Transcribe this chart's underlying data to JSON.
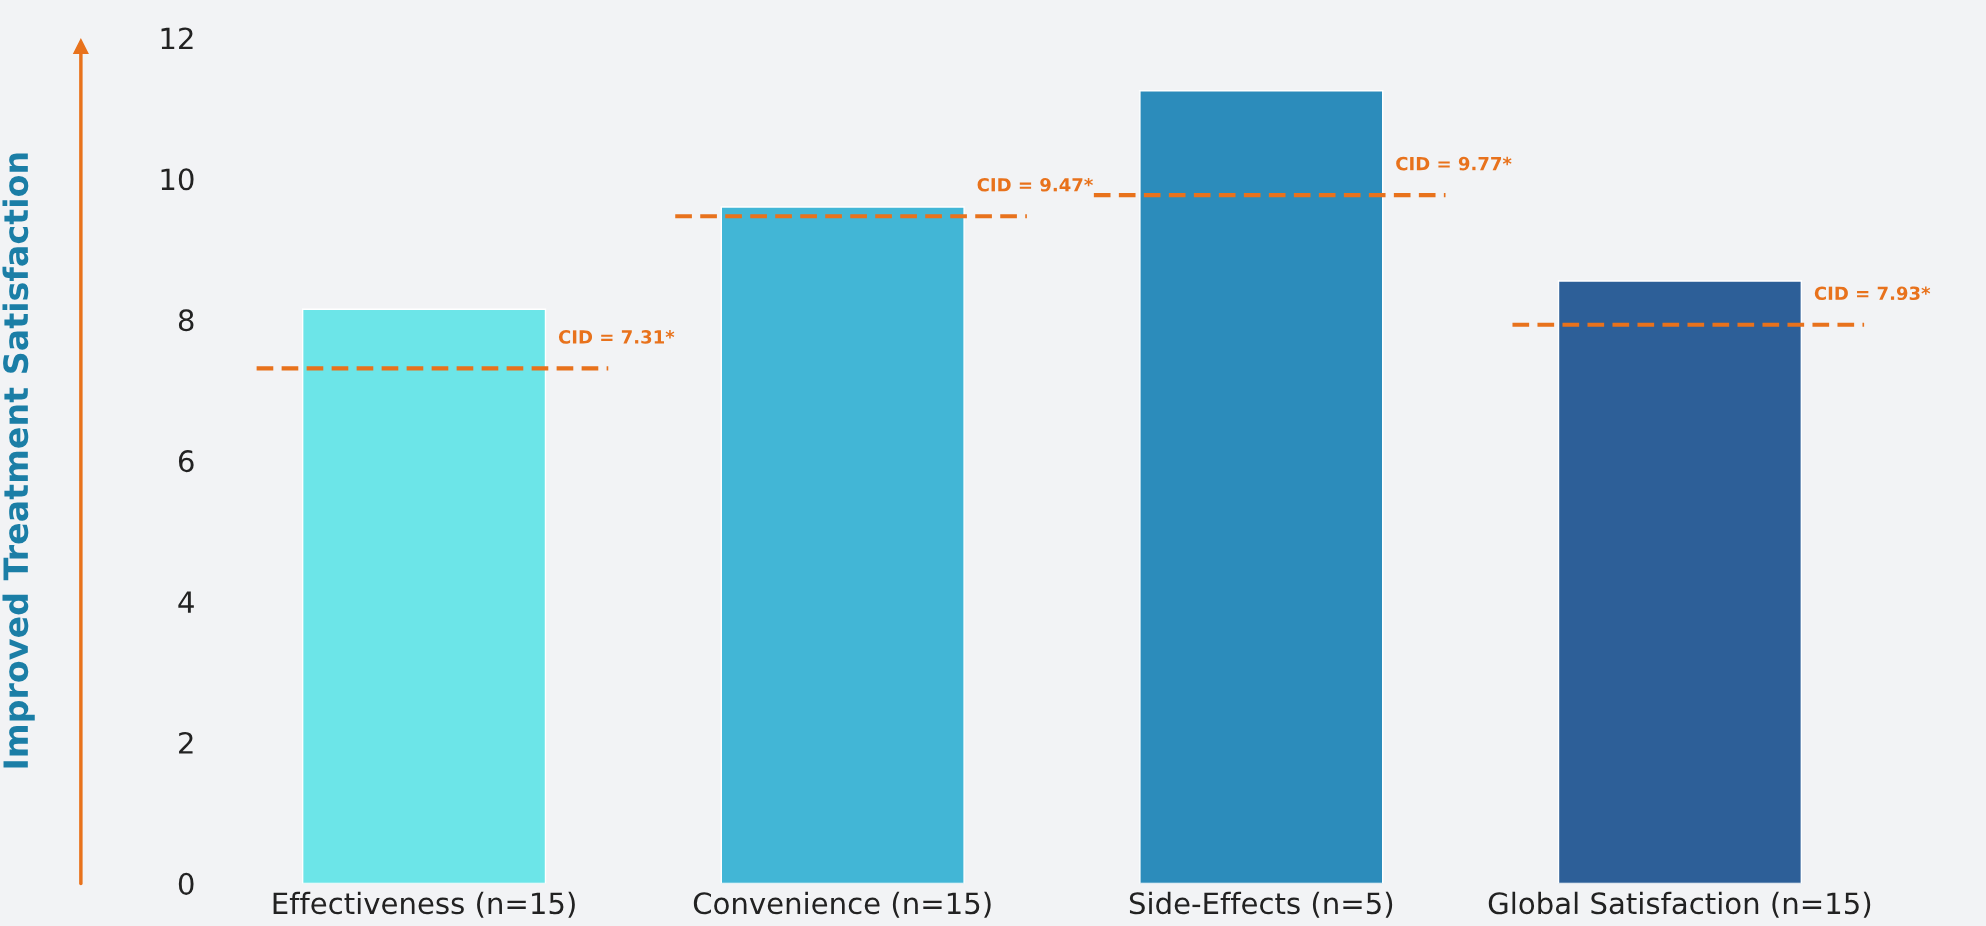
{
  "chart_data": {
    "type": "bar",
    "ylabel": "Improved Treatment Satisfaction",
    "categories": [
      "Effectiveness (n=15)",
      "Convenience (n=15)",
      "Side-Effects (n=5)",
      "Global Satisfaction (n=15)"
    ],
    "values": [
      8.15,
      9.6,
      11.25,
      8.55
    ],
    "colors": [
      "#6ce5e8",
      "#42b6d6",
      "#2c8cbb",
      "#2d5f98"
    ],
    "ylim": [
      0,
      12
    ],
    "yticks": [
      0,
      2,
      4,
      6,
      8,
      10,
      12
    ],
    "grid": false,
    "ref_lines": [
      {
        "axis": "y",
        "value": 7.31,
        "label": "CID = 7.31*",
        "color": "#e8721c",
        "line_style": "dashed"
      },
      {
        "axis": "y",
        "value": 9.47,
        "label": "CID = 9.47*",
        "color": "#e8721c",
        "line_style": "dashed"
      },
      {
        "axis": "y",
        "value": 9.77,
        "label": "CID = 9.77*",
        "color": "#e8721c",
        "line_style": "dashed"
      },
      {
        "axis": "y",
        "value": 7.93,
        "label": "CID = 7.93*",
        "color": "#e8721c",
        "line_style": "dashed"
      }
    ]
  }
}
